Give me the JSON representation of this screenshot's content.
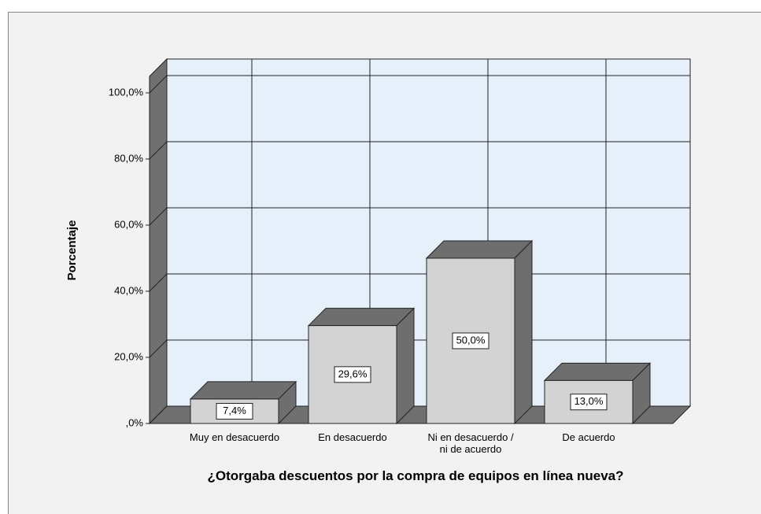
{
  "chart_data": {
    "type": "bar3d",
    "title": "¿Otorgaba descuentos por la compra de equipos en línea nueva?",
    "y_label": "Porcentaje",
    "categories": [
      "Muy en desacuerdo",
      "En desacuerdo",
      "Ni en desacuerdo /\nni de acuerdo",
      "De acuerdo"
    ],
    "values": [
      7.4,
      29.6,
      50,
      13
    ],
    "value_labels": [
      "7,4%",
      "29,6%",
      "50,0%",
      "13,0%"
    ],
    "color": "#d3d3d3",
    "ylim": [
      0,
      105
    ],
    "yticks": [
      {
        "value": 0,
        "label": ",0%"
      },
      {
        "value": 20,
        "label": "20,0%"
      },
      {
        "value": 40,
        "label": "40,0%"
      },
      {
        "value": 60,
        "label": "60,0%"
      },
      {
        "value": 80,
        "label": "80,0%"
      },
      {
        "value": 100,
        "label": "100,0%"
      }
    ],
    "grid": true
  }
}
